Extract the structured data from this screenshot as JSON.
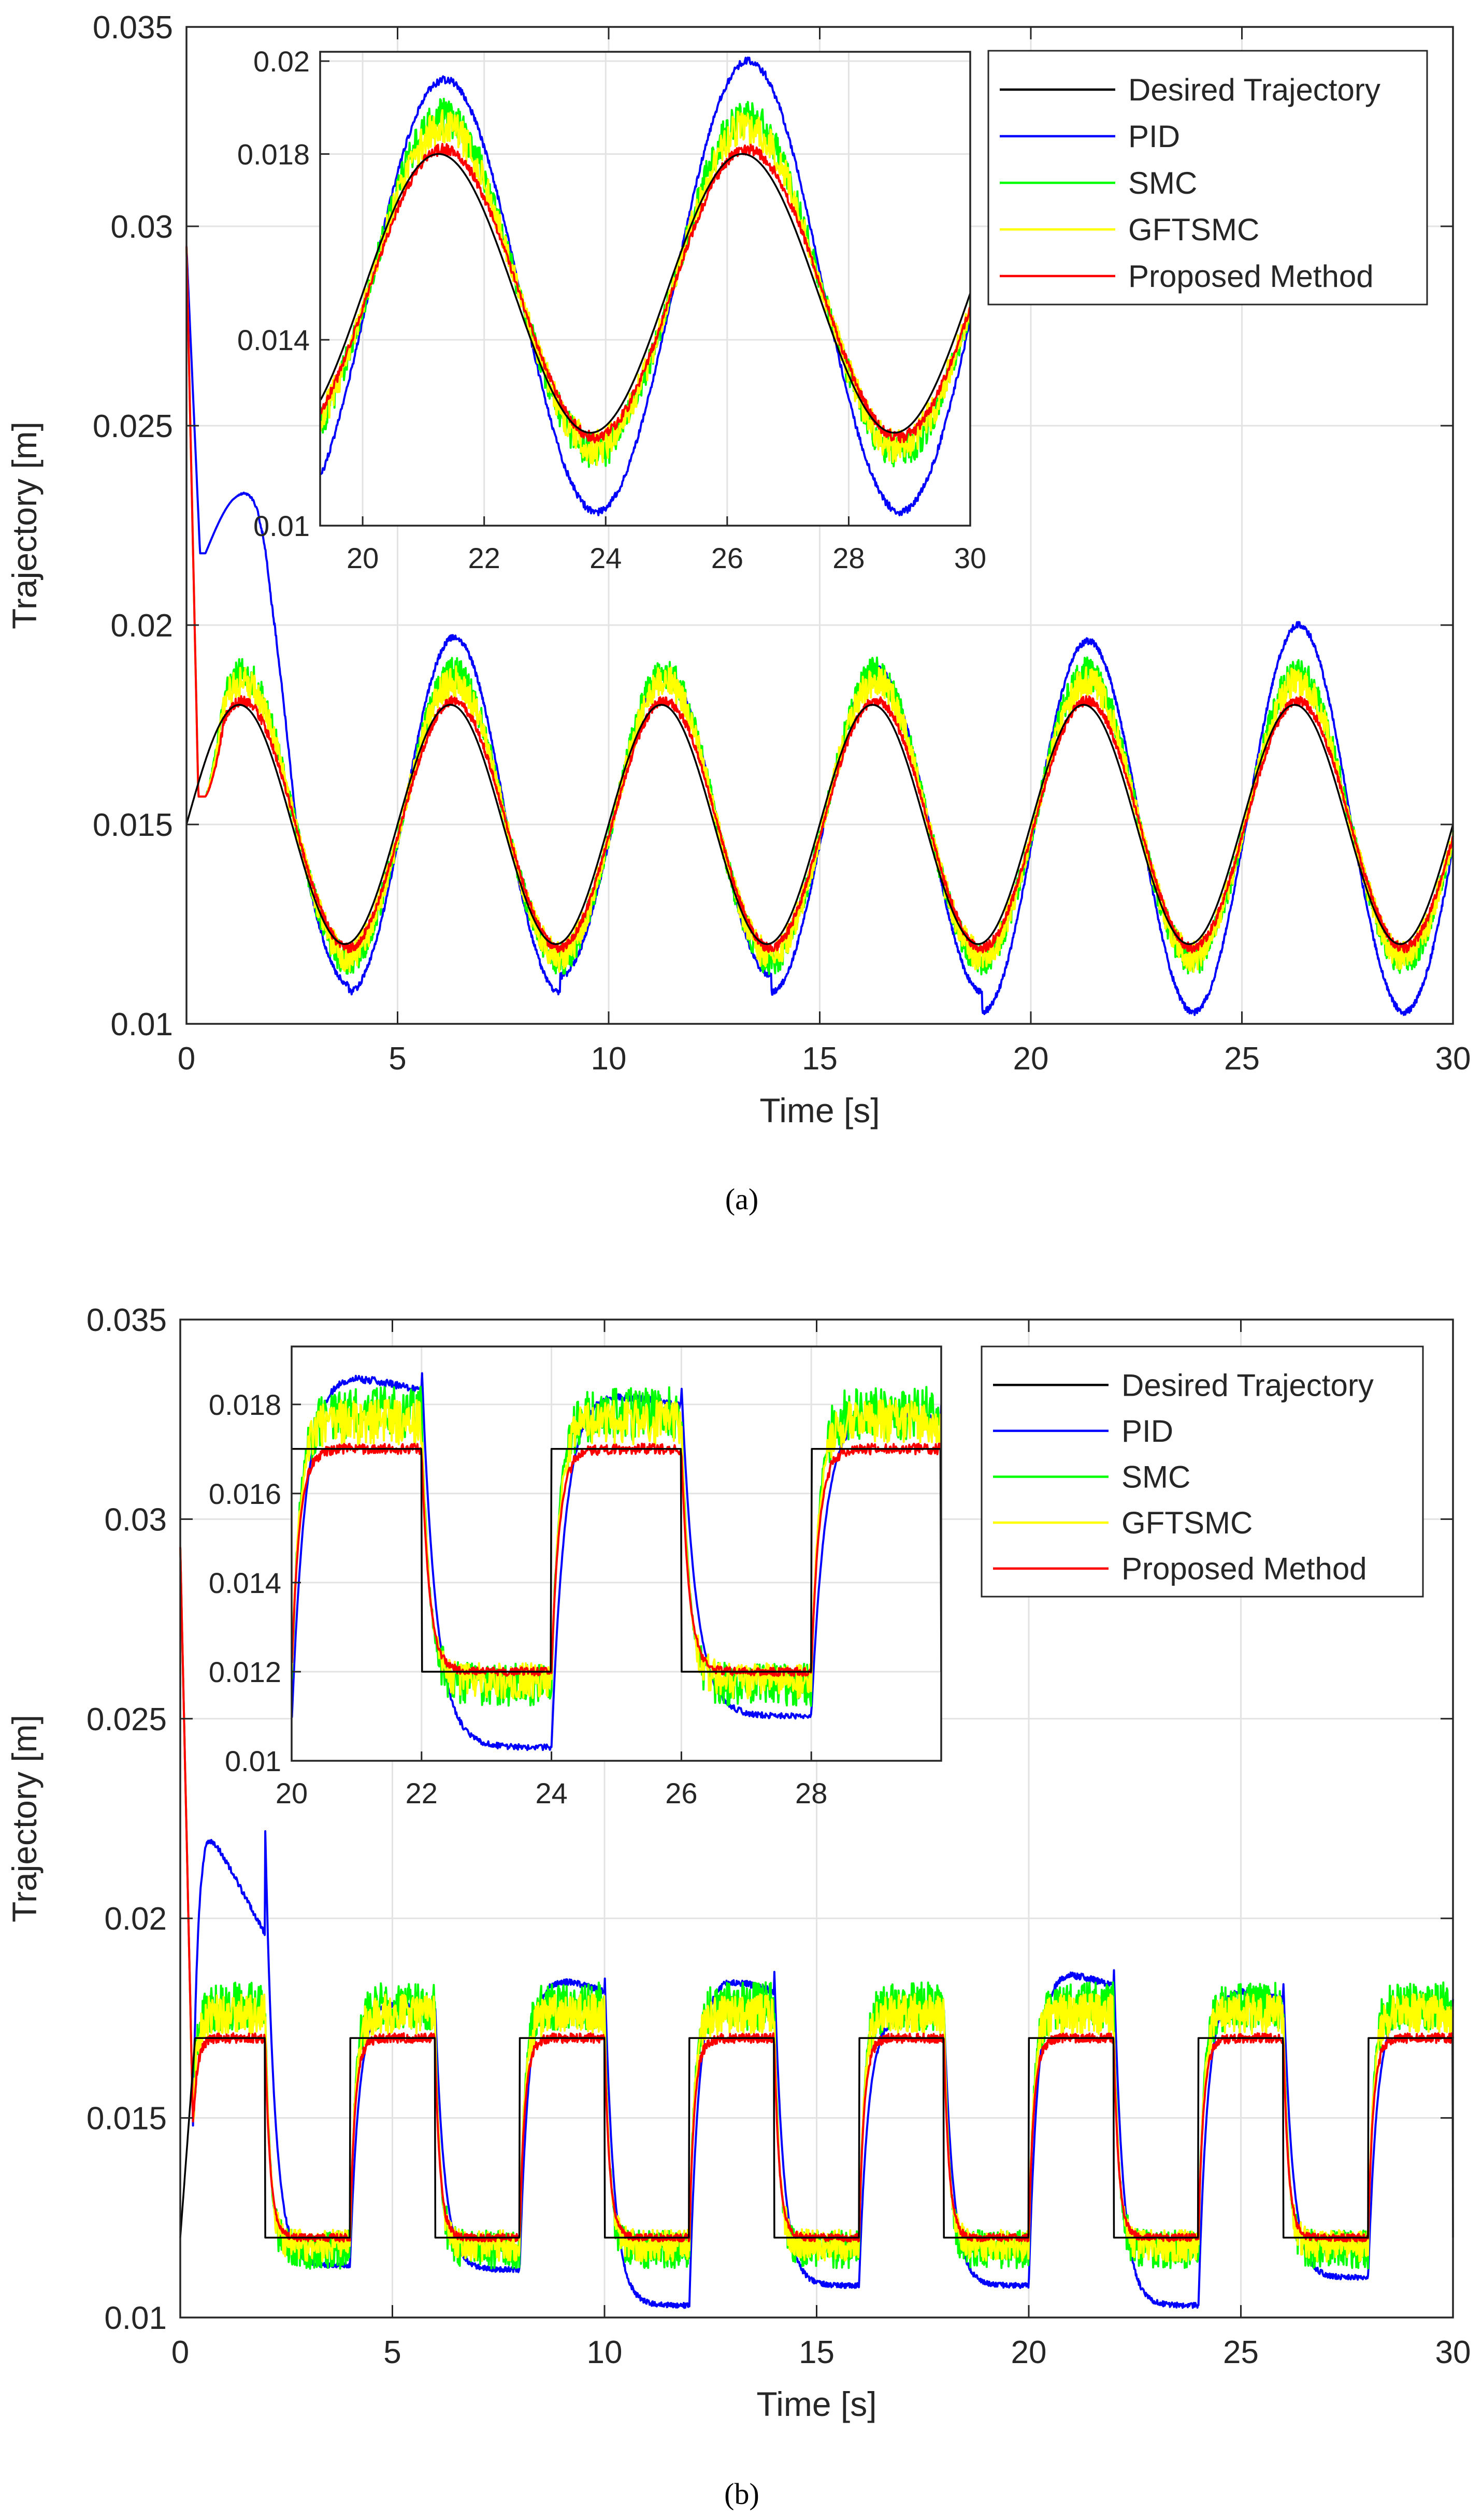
{
  "colors": {
    "desired": "#000000",
    "pid": "#0000ff",
    "smc": "#00ff00",
    "gftsmc": "#ffff00",
    "proposed": "#ff0000",
    "grid": "#e3e3e3",
    "axis": "#262626"
  },
  "chart_data": [
    {
      "id": "a",
      "type": "line",
      "caption": "(a)",
      "signal": "sine",
      "ylabel": "Trajectory [m]",
      "xlabel": "Time [s]",
      "xlim": [
        0,
        30
      ],
      "ylim": [
        0.01,
        0.035
      ],
      "xticks": [
        0,
        5,
        10,
        15,
        20,
        25,
        30
      ],
      "xtick_labels": [
        "0",
        "5",
        "10",
        "15",
        "20",
        "25",
        "30"
      ],
      "yticks": [
        0.01,
        0.015,
        0.02,
        0.025,
        0.03,
        0.035
      ],
      "ytick_labels": [
        "0.01",
        "0.015",
        "0.02",
        "0.025",
        "0.03",
        "0.035"
      ],
      "grid": true,
      "legend_position": "top-right",
      "desired": {
        "center": 0.015,
        "amplitude": 0.003,
        "period": 5,
        "phase_start": 0
      },
      "series": [
        {
          "name": "Desired Trajectory",
          "key": "desired",
          "peak": 0.018,
          "trough": 0.012,
          "initial": 0.015,
          "noise": 0
        },
        {
          "name": "PID",
          "key": "pid",
          "peaks": [
            0.0233,
            0.0197,
            0.0188,
            0.0189,
            0.0196,
            0.02
          ],
          "troughs": [
            0.011,
            0.0108,
            0.0112,
            0.0108,
            0.0103,
            0.0103
          ],
          "initial": 0.0295,
          "noise": 8e-05
        },
        {
          "name": "SMC",
          "key": "smc",
          "peak": 0.0188,
          "trough": 0.0116,
          "initial": 0.0295,
          "noise": 0.0004
        },
        {
          "name": "GFTSMC",
          "key": "gftsmc",
          "peak": 0.0186,
          "trough": 0.0117,
          "initial": 0.0295,
          "noise": 0.0004
        },
        {
          "name": "Proposed Method",
          "key": "proposed",
          "peak": 0.0181,
          "trough": 0.0119,
          "initial": 0.0295,
          "noise": 0.00012
        }
      ],
      "inset": {
        "xlim": [
          19.3,
          30
        ],
        "ylim": [
          0.01,
          0.0202
        ],
        "xticks": [
          20,
          22,
          24,
          26,
          28,
          30
        ],
        "xtick_labels": [
          "20",
          "22",
          "24",
          "26",
          "28",
          "30"
        ],
        "yticks": [
          0.01,
          0.014,
          0.018,
          0.02
        ],
        "ytick_labels": [
          "0.01",
          "0.014",
          "0.018",
          "0.02"
        ]
      }
    },
    {
      "id": "b",
      "type": "line",
      "caption": "(b)",
      "signal": "square",
      "ylabel": "Trajectory [m]",
      "xlabel": "Time [s]",
      "xlim": [
        0,
        30
      ],
      "ylim": [
        0.01,
        0.035
      ],
      "xticks": [
        0,
        5,
        10,
        15,
        20,
        25,
        30
      ],
      "xtick_labels": [
        "0",
        "5",
        "10",
        "15",
        "20",
        "25",
        "30"
      ],
      "yticks": [
        0.01,
        0.015,
        0.02,
        0.025,
        0.03,
        0.035
      ],
      "ytick_labels": [
        "0.01",
        "0.015",
        "0.02",
        "0.025",
        "0.03",
        "0.035"
      ],
      "grid": true,
      "legend_position": "top-right",
      "desired": {
        "high": 0.017,
        "low": 0.012,
        "half_period": 2,
        "initial": 0.012
      },
      "series": [
        {
          "name": "Desired Trajectory",
          "key": "desired",
          "high": 0.017,
          "low": 0.012,
          "initial": 0.012,
          "noise": 0
        },
        {
          "name": "PID",
          "key": "pid",
          "highs": [
            0.0224,
            0.0181,
            0.0188,
            0.0188,
            0.0177,
            0.019,
            0.0185,
            0.018
          ],
          "lows": [
            0.0113,
            0.0112,
            0.0103,
            0.0108,
            0.0108,
            0.0103,
            0.011
          ],
          "initial": 0.0293,
          "noise": 8e-05
        },
        {
          "name": "SMC",
          "key": "smc",
          "high": 0.0178,
          "low": 0.0117,
          "initial": 0.0293,
          "noise": 0.0006
        },
        {
          "name": "GFTSMC",
          "key": "gftsmc",
          "high": 0.0176,
          "low": 0.0118,
          "initial": 0.0293,
          "noise": 0.0005
        },
        {
          "name": "Proposed Method",
          "key": "proposed",
          "high": 0.017,
          "low": 0.012,
          "initial": 0.0293,
          "noise": 0.00012
        }
      ],
      "inset": {
        "xlim": [
          20,
          30
        ],
        "ylim": [
          0.01,
          0.0193
        ],
        "xticks": [
          20,
          22,
          24,
          26,
          28
        ],
        "xtick_labels": [
          "20",
          "22",
          "24",
          "26",
          "28"
        ],
        "yticks": [
          0.01,
          0.012,
          0.014,
          0.016,
          0.018
        ],
        "ytick_labels": [
          "0.01",
          "0.012",
          "0.014",
          "0.016",
          "0.018"
        ]
      }
    }
  ]
}
